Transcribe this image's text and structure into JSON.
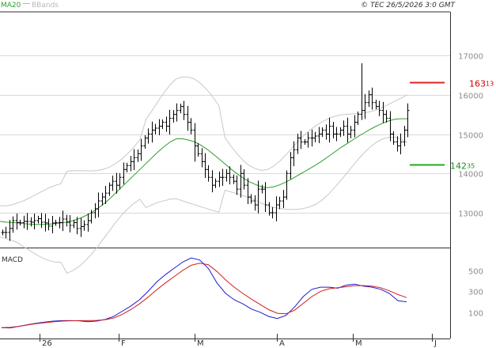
{
  "header": {
    "ma_label": "MA20",
    "bb_label": "BBands",
    "copyright": "© TEC 26/5/2026 3:0 GMT"
  },
  "levels": {
    "resistance": {
      "value": 163.13,
      "int": "163",
      "dec": "13",
      "color": "#e02020"
    },
    "support": {
      "value": 142.35,
      "int": "142",
      "dec": "35",
      "color": "#22aa22"
    }
  },
  "chart_data": [
    {
      "type": "line",
      "title": "",
      "yaxis": {
        "ticks": [
          13000,
          14000,
          15000,
          16000,
          17000
        ],
        "labels": [
          "13000",
          "14000",
          "15000",
          "16000",
          "17000"
        ],
        "ylim": [
          11900,
          18800
        ]
      },
      "x": {
        "ticks": [
          "26",
          "F",
          "M",
          "A",
          "M",
          "J"
        ]
      },
      "ohlc_closes": [
        125.0,
        125.0,
        126.0,
        128.0,
        127.5,
        127.5,
        127.8,
        127.8,
        127.6,
        128.0,
        128.5,
        127.6,
        127.4,
        126.6,
        127.4,
        127.5,
        127.5,
        128.4,
        127.6,
        126.8,
        127.5,
        126.0,
        126.5,
        127.0,
        128.0,
        130.0,
        131.0,
        133.0,
        134.0,
        135.0,
        137.0,
        138.0,
        137.0,
        139.0,
        141.0,
        142.0,
        143.0,
        144.0,
        145.0,
        147.0,
        149.0,
        150.0,
        151.0,
        151.5,
        152.0,
        153.0,
        152.0,
        154.0,
        155.0,
        156.0,
        157.0,
        155.0,
        153.0,
        151.0,
        147.0,
        145.0,
        143.0,
        141.0,
        139.0,
        137.0,
        138.0,
        139.0,
        139.0,
        140.0,
        139.0,
        138.0,
        136.0,
        140.0,
        137.0,
        134.0,
        133.0,
        132.0,
        136.0,
        136.0,
        132.0,
        130.0,
        130.0,
        132.0,
        133.0,
        134.0,
        140.0,
        144.0,
        146.0,
        149.0,
        148.0,
        148.0,
        149.0,
        149.0,
        149.5,
        150.0,
        151.0,
        150.0,
        152.0,
        150.0,
        150.0,
        151.0,
        152.0,
        150.0,
        151.0,
        153.0,
        155.0,
        156.0,
        158.0,
        160.0,
        158.0,
        157.0,
        156.0,
        155.0,
        154.0,
        150.0,
        148.0,
        147.0,
        148.0,
        151.0,
        156.0
      ],
      "series": [
        {
          "name": "MA20",
          "color": "#2a9d2a",
          "values": [
            127.8,
            127.6,
            127.5,
            127.4,
            127.2,
            127.1,
            127.0,
            127.0,
            127.1,
            127.2,
            127.4,
            127.6,
            128.0,
            128.5,
            129.2,
            130.0,
            131.0,
            132.2,
            133.5,
            135.0,
            136.5,
            138.0,
            139.5,
            141.0,
            142.5,
            144.0,
            145.5,
            146.8,
            148.0,
            148.8,
            148.8,
            148.5,
            148.0,
            147.2,
            146.2,
            145.0,
            143.7,
            142.4,
            141.1,
            139.9,
            138.8,
            137.9,
            137.2,
            136.6,
            136.4,
            136.6,
            137.1,
            137.8,
            138.6,
            139.5,
            140.4,
            141.3,
            142.2,
            143.2,
            144.3,
            145.4,
            146.5,
            147.5,
            148.5,
            149.5,
            150.4,
            151.3,
            152.1,
            152.8,
            153.4,
            153.8,
            153.9,
            153.9
          ]
        },
        {
          "name": "BBands",
          "color": "#c8c8c8",
          "values": []
        }
      ]
    },
    {
      "type": "line",
      "title": "MACD",
      "yaxis": {
        "ticks": [
          100,
          300,
          500
        ],
        "labels": [
          "100",
          "300",
          "500"
        ]
      },
      "series": [
        {
          "name": "MACD",
          "color": "#1c1cd0",
          "values": [
            -48,
            -50,
            -35,
            -20,
            -5,
            5,
            15,
            20,
            20,
            18,
            10,
            15,
            30,
            60,
            110,
            160,
            220,
            300,
            390,
            460,
            520,
            580,
            620,
            600,
            520,
            380,
            280,
            220,
            180,
            130,
            100,
            60,
            40,
            70,
            150,
            250,
            320,
            340,
            340,
            330,
            360,
            370,
            350,
            340,
            320,
            280,
            210,
            200
          ]
        },
        {
          "name": "Signal",
          "color": "#d01c1c",
          "values": [
            -48,
            -45,
            -35,
            -22,
            -10,
            0,
            8,
            15,
            18,
            20,
            20,
            22,
            28,
            45,
            80,
            125,
            180,
            245,
            315,
            380,
            440,
            500,
            550,
            570,
            555,
            490,
            410,
            340,
            280,
            225,
            175,
            125,
            90,
            85,
            120,
            185,
            250,
            300,
            325,
            335,
            345,
            355,
            355,
            350,
            335,
            305,
            270,
            240
          ]
        }
      ]
    }
  ]
}
